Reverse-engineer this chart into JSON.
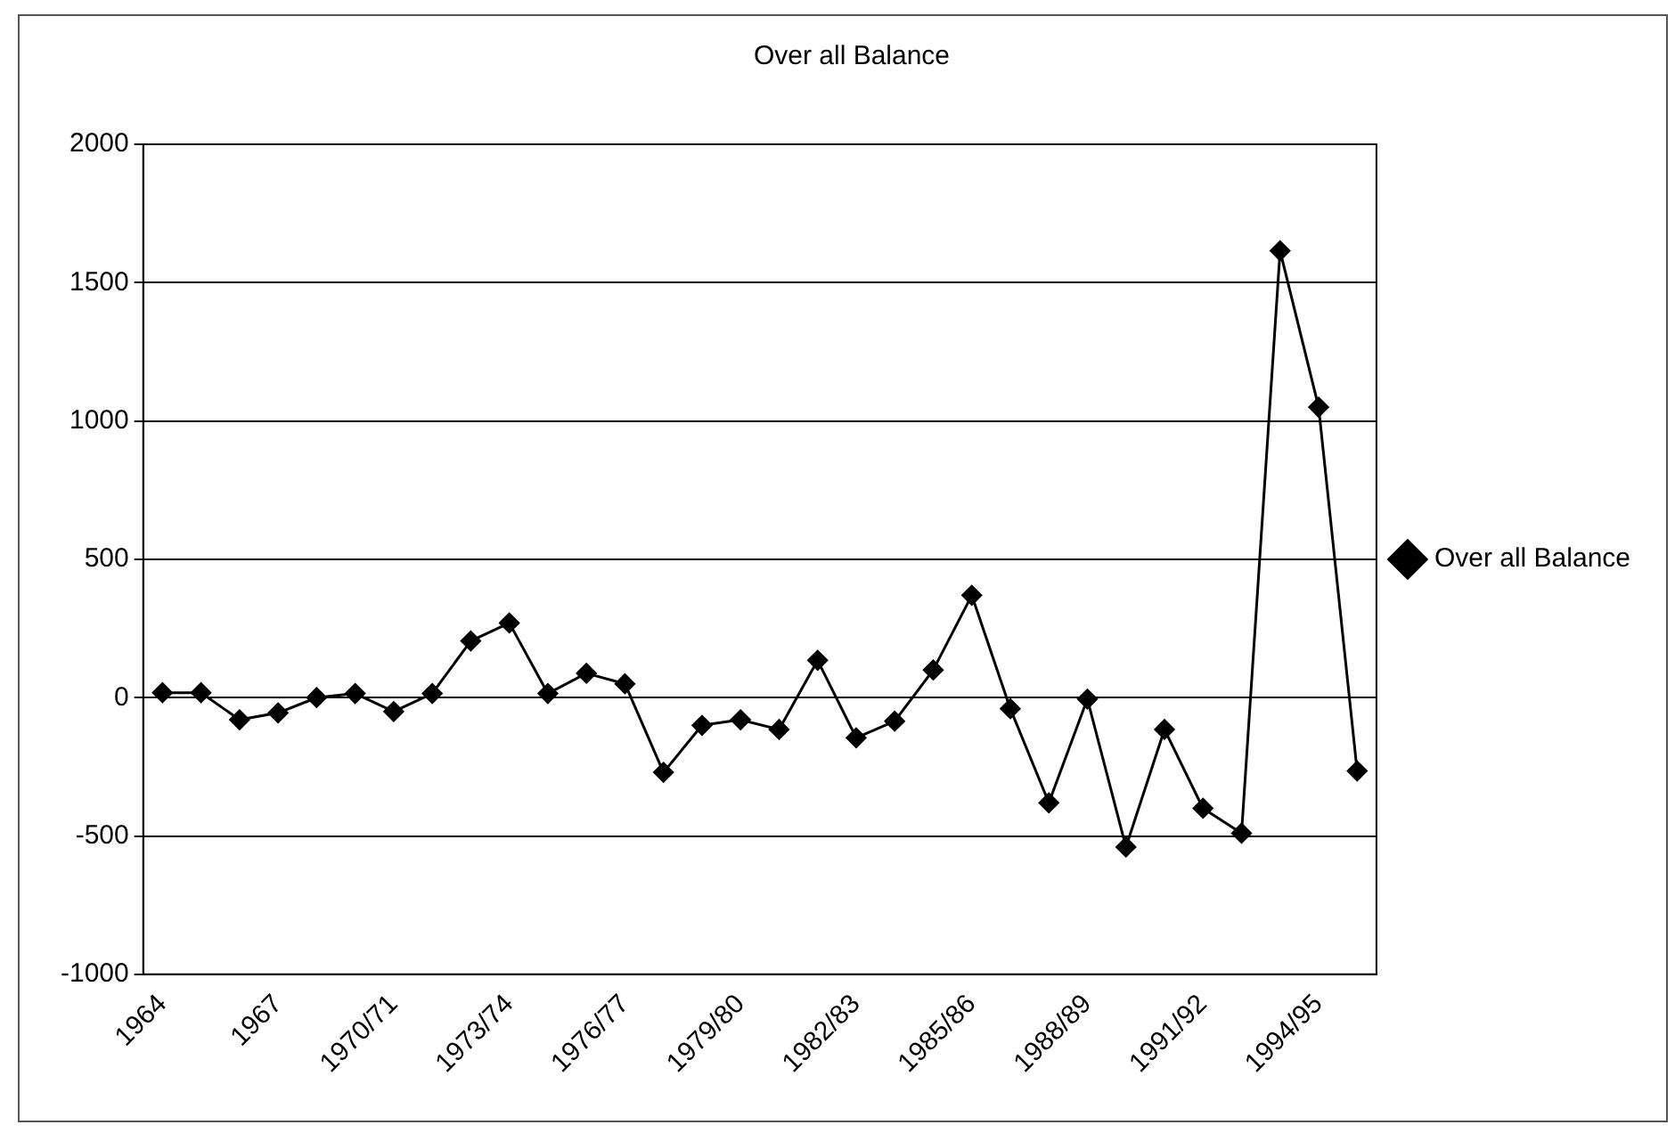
{
  "chart_data": {
    "type": "line",
    "title": "Over all Balance",
    "categories": [
      "1964",
      null,
      null,
      "1967",
      null,
      null,
      "1970/71",
      null,
      null,
      "1973/74",
      null,
      null,
      "1976/77",
      null,
      null,
      "1979/80",
      null,
      null,
      "1982/83",
      null,
      null,
      "1985/86",
      null,
      null,
      "1988/89",
      null,
      null,
      "1991/92",
      null,
      null,
      "1994/95",
      null
    ],
    "series": [
      {
        "name": "Over all Balance",
        "color": "#000000",
        "values": [
          18,
          18,
          -80,
          -55,
          0,
          15,
          -50,
          15,
          205,
          270,
          15,
          88,
          50,
          -270,
          -100,
          -80,
          -115,
          135,
          -145,
          -85,
          100,
          370,
          -40,
          -380,
          -5,
          -540,
          -115,
          -400,
          -490,
          1615,
          1050,
          -265
        ]
      }
    ],
    "ylim": [
      -1000,
      2000
    ],
    "yticks": [
      -1000,
      -500,
      0,
      500,
      1000,
      1500,
      2000
    ],
    "grid": "y",
    "legend": "right",
    "marker": "diamond",
    "line_style": "solid"
  }
}
